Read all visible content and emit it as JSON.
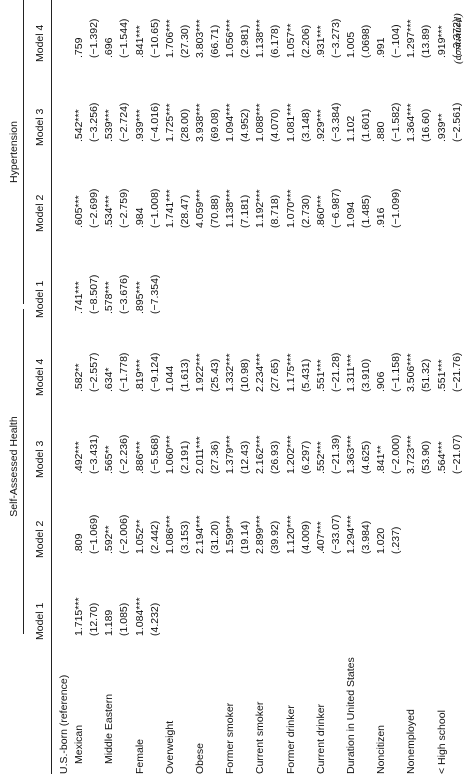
{
  "header": {
    "group1": "Self-Assessed Health",
    "group2": "Hypertension",
    "models": [
      "Model 1",
      "Model 2",
      "Model 3",
      "Model 4",
      "Model 1",
      "Model 2",
      "Model 3",
      "Model 4"
    ]
  },
  "rows": [
    {
      "label": "U.S.-born (reference)",
      "indent": false,
      "cells": [
        "",
        "",
        "",
        "",
        "",
        "",
        "",
        ""
      ]
    },
    {
      "label": "Mexican",
      "indent": true,
      "cells": [
        "1.715***",
        ".809",
        ".492***",
        ".582**",
        ".741***",
        ".605***",
        ".542***",
        ".759"
      ]
    },
    {
      "label": "",
      "indent": true,
      "cells": [
        "(12.70)",
        "(−1.069)",
        "(−3.431)",
        "(−2.557)",
        "(−8.507)",
        "(−2.699)",
        "(−3.256)",
        "(−1.392)"
      ]
    },
    {
      "label": "Middle Eastern",
      "indent": true,
      "cells": [
        "1.189",
        ".592**",
        ".565**",
        ".634*",
        ".578***",
        ".534***",
        ".539***",
        ".696"
      ]
    },
    {
      "label": "",
      "indent": true,
      "cells": [
        "(1.085)",
        "(−2.006)",
        "(−2.236)",
        "(−1.778)",
        "(−3.676)",
        "(−2.759)",
        "(−2.724)",
        "(−1.544)"
      ]
    },
    {
      "label": "Female",
      "indent": false,
      "cells": [
        "1.084***",
        "1.052**",
        ".886***",
        ".819***",
        ".895***",
        ".984",
        ".939***",
        ".841***"
      ]
    },
    {
      "label": "",
      "indent": false,
      "cells": [
        "(4.232)",
        "(2.442)",
        "(−5.568)",
        "(−9.124)",
        "(−7.354)",
        "(−1.008)",
        "(−4.016)",
        "(−10.65)"
      ]
    },
    {
      "label": "Overweight",
      "indent": false,
      "cells": [
        "",
        "1.086***",
        "1.060***",
        "1.044",
        "",
        "1.741***",
        "1.725***",
        "1.706***"
      ]
    },
    {
      "label": "",
      "indent": false,
      "cells": [
        "",
        "(3.153)",
        "(2.191)",
        "(1.613)",
        "",
        "(28.47)",
        "(28.00)",
        "(27.30)"
      ]
    },
    {
      "label": "Obese",
      "indent": false,
      "cells": [
        "",
        "2.194***",
        "2.011***",
        "1.922***",
        "",
        "4.059***",
        "3.938***",
        "3.803***"
      ]
    },
    {
      "label": "",
      "indent": false,
      "cells": [
        "",
        "(31.20)",
        "(27.36)",
        "(25.43)",
        "",
        "(70.88)",
        "(69.08)",
        "(66.71)"
      ]
    },
    {
      "label": "Former smoker",
      "indent": false,
      "cells": [
        "",
        "1.599***",
        "1.379***",
        "1.332***",
        "",
        "1.138***",
        "1.094***",
        "1.056***"
      ]
    },
    {
      "label": "",
      "indent": false,
      "cells": [
        "",
        "(19.14)",
        "(12.43)",
        "(10.98)",
        "",
        "(7.181)",
        "(4.952)",
        "(2.981)"
      ]
    },
    {
      "label": "Current smoker",
      "indent": false,
      "cells": [
        "",
        "2.899***",
        "2.162***",
        "2.234***",
        "",
        "1.192***",
        "1.088***",
        "1.138***"
      ]
    },
    {
      "label": "",
      "indent": false,
      "cells": [
        "",
        "(39.92)",
        "(26.93)",
        "(27.65)",
        "",
        "(8.718)",
        "(4.070)",
        "(6.178)"
      ]
    },
    {
      "label": "Former drinker",
      "indent": false,
      "cells": [
        "",
        "1.120***",
        "1.202***",
        "1.175***",
        "",
        "1.070***",
        "1.081***",
        "1.057**"
      ]
    },
    {
      "label": "",
      "indent": false,
      "cells": [
        "",
        "(4.009)",
        "(6.297)",
        "(5.431)",
        "",
        "(2.730)",
        "(3.148)",
        "(2.206)"
      ]
    },
    {
      "label": "Current drinker",
      "indent": false,
      "cells": [
        "",
        ".407***",
        ".552***",
        ".551***",
        "",
        ".860***",
        ".929***",
        ".931***"
      ]
    },
    {
      "label": "",
      "indent": false,
      "cells": [
        "",
        "(−33.07)",
        "(−21.39)",
        "(−21.28)",
        "",
        "(−6.987)",
        "(−3.384)",
        "(−3.273)"
      ]
    },
    {
      "label": "Duration in United States",
      "indent": false,
      "cells": [
        "",
        "1.294***",
        "1.363***",
        "1.311***",
        "",
        "1.094",
        "1.102",
        "1.005"
      ]
    },
    {
      "label": "",
      "indent": false,
      "cells": [
        "",
        "(3.984)",
        "(4.625)",
        "(3.910)",
        "",
        "(1.485)",
        "(1.601)",
        "(.0698)"
      ]
    },
    {
      "label": "Noncitizen",
      "indent": false,
      "cells": [
        "",
        "1.020",
        ".841**",
        ".906",
        "",
        ".916",
        ".880",
        ".991"
      ]
    },
    {
      "label": "",
      "indent": false,
      "cells": [
        "",
        "(.237)",
        "(−2.000)",
        "(−1.158)",
        "",
        "(−1.099)",
        "(−1.582)",
        "(−.104)"
      ]
    },
    {
      "label": "Nonemployed",
      "indent": false,
      "cells": [
        "",
        "",
        "3.723***",
        "3.506***",
        "",
        "",
        "1.364***",
        "1.297***"
      ]
    },
    {
      "label": "",
      "indent": false,
      "cells": [
        "",
        "",
        "(53.90)",
        "(51.32)",
        "",
        "",
        "(16.60)",
        "(13.89)"
      ]
    },
    {
      "label": "< High school",
      "indent": false,
      "cells": [
        "",
        "",
        ".564***",
        ".551***",
        "",
        "",
        ".939**",
        ".919***"
      ]
    },
    {
      "label": "",
      "indent": false,
      "cells": [
        "",
        "",
        "(−21.07)",
        "(−21.76)",
        "",
        "",
        "(−2.561)",
        "(−3.372)"
      ]
    }
  ],
  "continued": "(continued)"
}
